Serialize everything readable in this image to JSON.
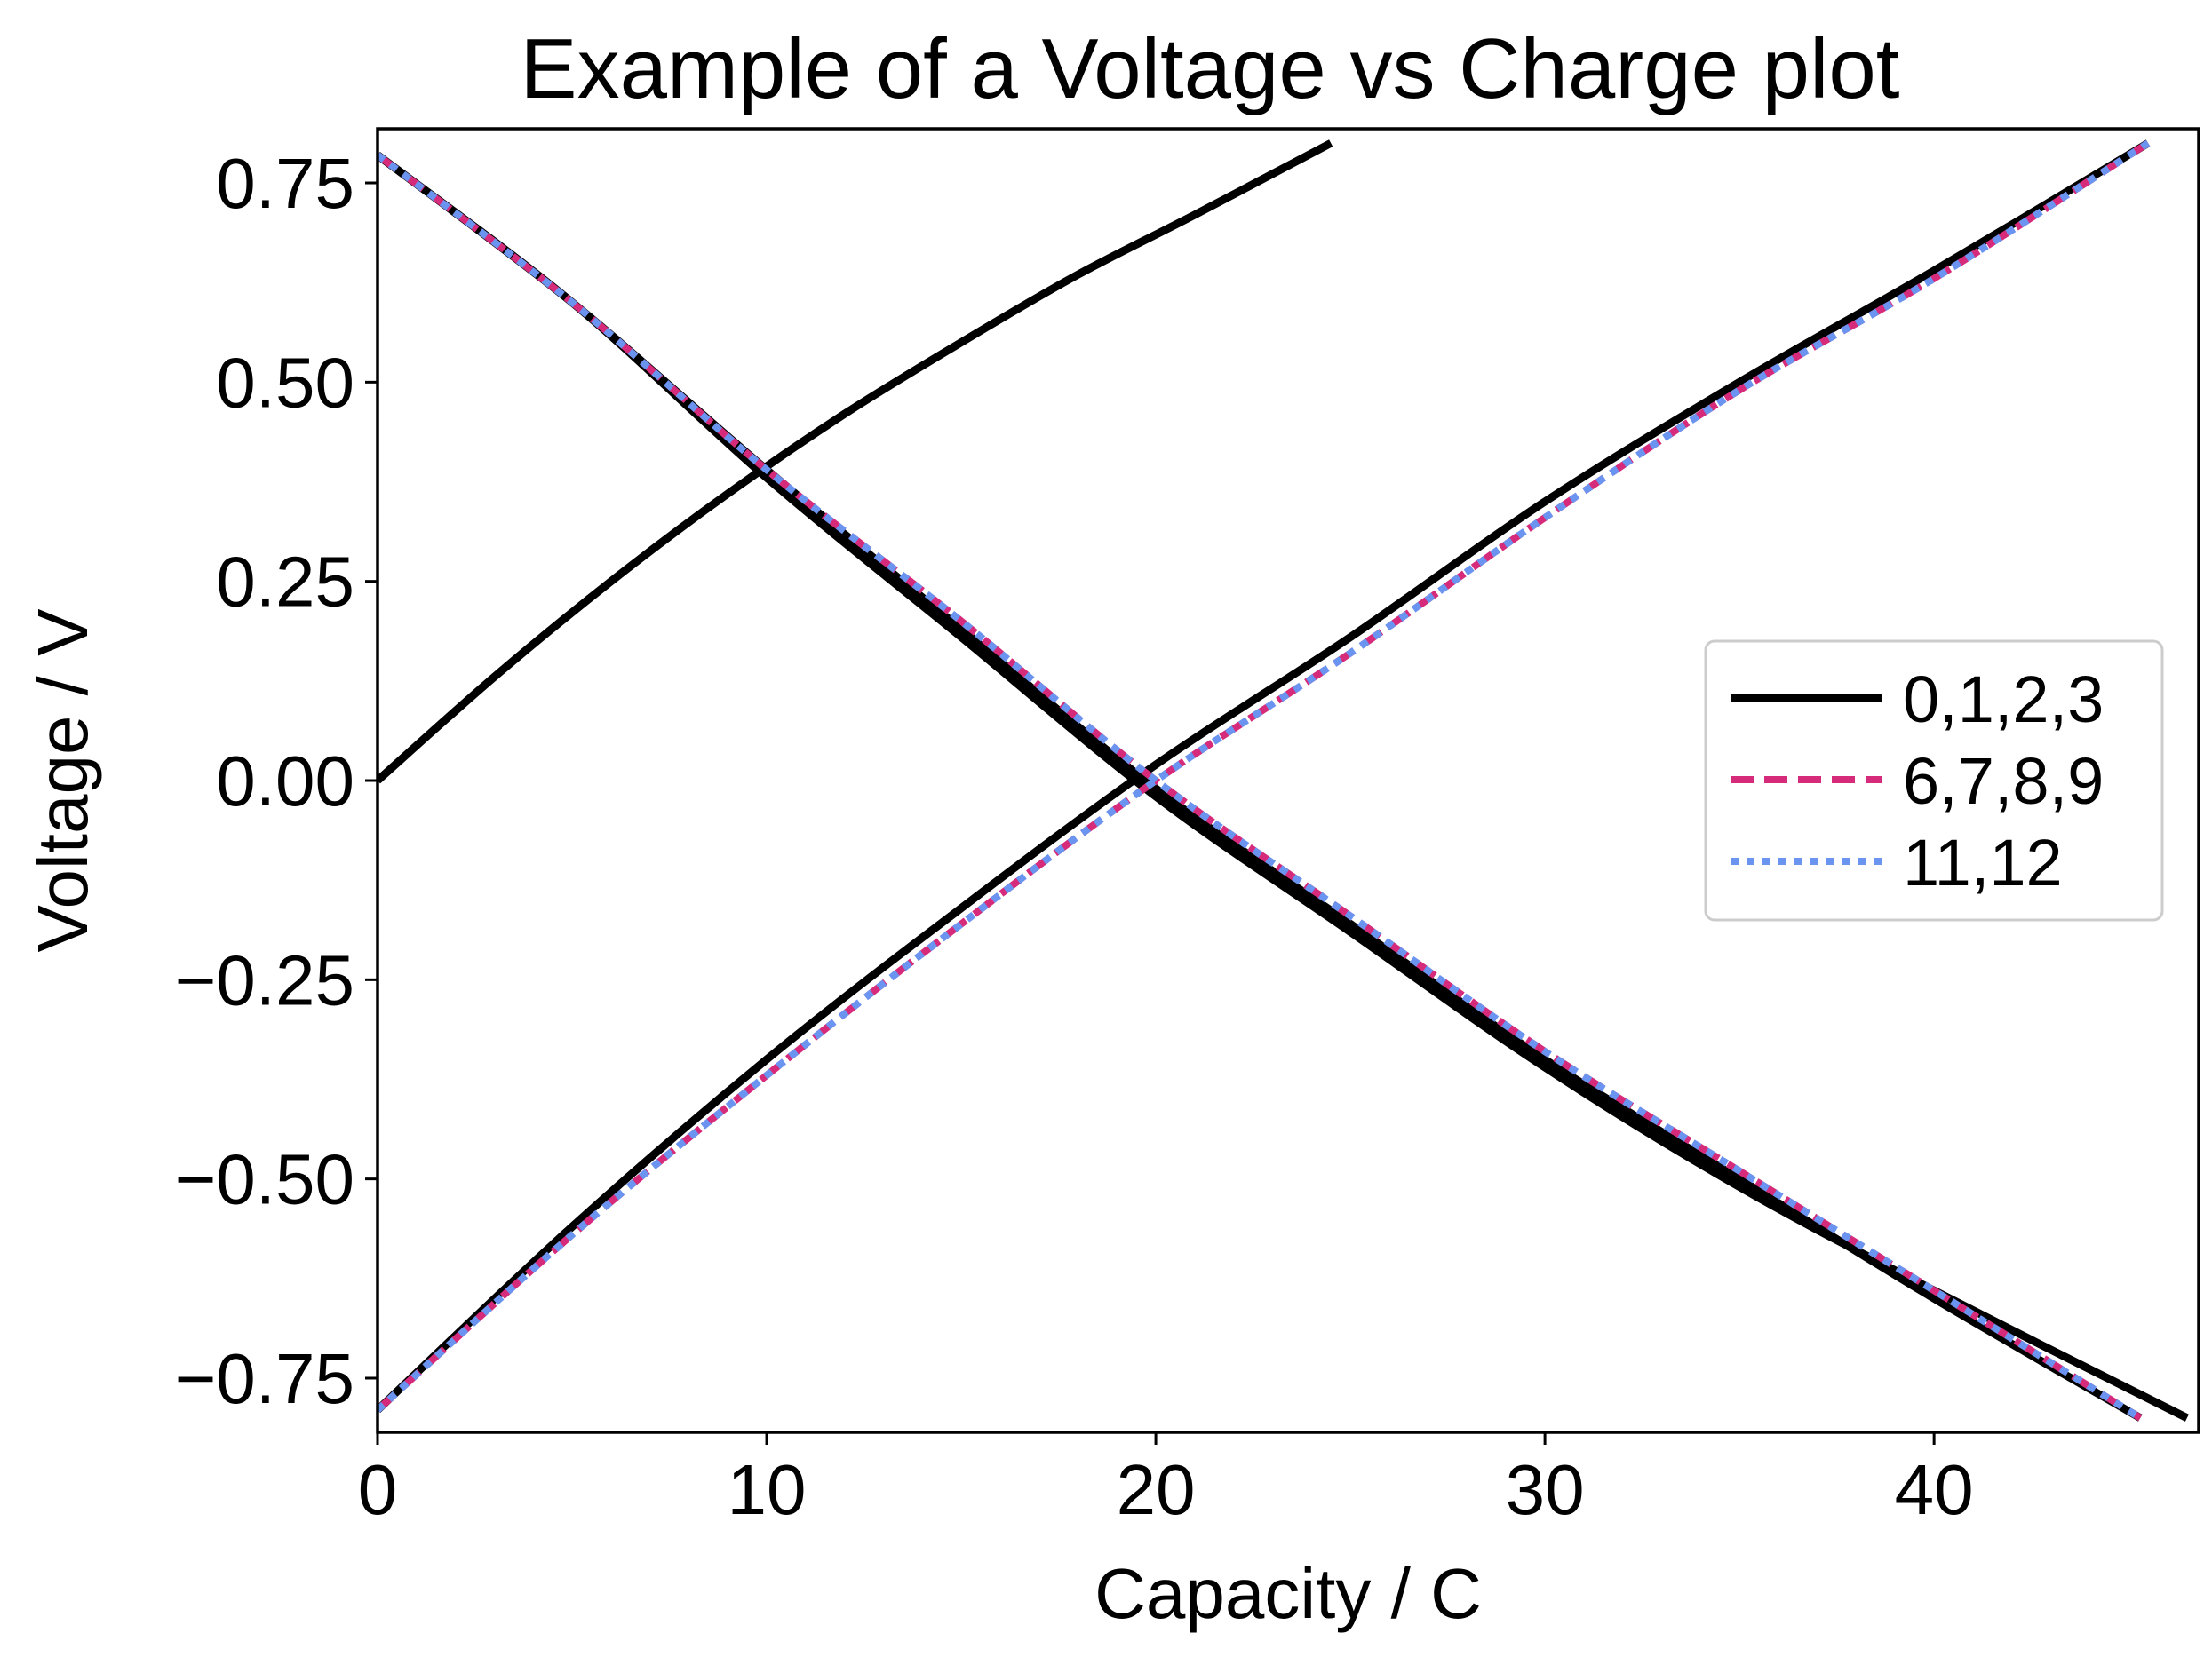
{
  "chart_data": {
    "type": "line",
    "title": "Example of a Voltage vs Charge plot",
    "xlabel": "Capacity / C",
    "ylabel": "Voltage / V",
    "xlim": [
      0,
      46.8
    ],
    "ylim": [
      -0.818,
      0.818
    ],
    "xticks": [
      0,
      10,
      20,
      30,
      40
    ],
    "xtick_labels": [
      "0",
      "10",
      "20",
      "30",
      "40"
    ],
    "yticks": [
      0.75,
      0.5,
      0.25,
      0.0,
      -0.25,
      -0.5,
      -0.75
    ],
    "ytick_labels": [
      "0.75",
      "0.50",
      "0.25",
      "0.00",
      "−0.25",
      "−0.50",
      "−0.75"
    ],
    "grid": false,
    "legend_position": "center-right",
    "legend": [
      {
        "label": "0,1,2,3",
        "color": "#000000",
        "style": "solid"
      },
      {
        "label": "6,7,8,9",
        "color": "#d62a7b",
        "style": "dashed"
      },
      {
        "label": "11,12",
        "color": "#6b93f0",
        "style": "dotted"
      }
    ],
    "series": [
      {
        "name": "0,1,2,3",
        "color": "#000000",
        "style": "solid",
        "curves": [
          {
            "x": [
              0,
              3,
              6,
              9,
              12,
              15,
              18,
              21,
              24.5
            ],
            "y": [
              0.0,
              0.13,
              0.25,
              0.36,
              0.46,
              0.55,
              0.635,
              0.71,
              0.8
            ]
          },
          {
            "x": [
              0,
              5,
              10,
              15,
              20,
              25,
              30,
              35,
              40,
              46.5
            ],
            "y": [
              0.785,
              0.6,
              0.38,
              0.18,
              -0.02,
              -0.19,
              -0.36,
              -0.51,
              -0.64,
              -0.8
            ]
          },
          {
            "x": [
              0,
              5,
              10,
              15,
              20,
              25,
              30,
              35,
              40,
              45.3
            ],
            "y": [
              0.785,
              0.6,
              0.39,
              0.19,
              -0.01,
              -0.18,
              -0.35,
              -0.5,
              -0.65,
              -0.8
            ]
          },
          {
            "x": [
              0,
              5,
              10,
              15,
              20,
              25,
              30,
              35,
              40,
              45.5
            ],
            "y": [
              -0.79,
              -0.56,
              -0.35,
              -0.16,
              0.02,
              0.18,
              0.35,
              0.5,
              0.64,
              0.8
            ]
          }
        ]
      },
      {
        "name": "6,7,8,9",
        "color": "#d62a7b",
        "style": "dashed",
        "curves": [
          {
            "x": [
              0,
              5,
              10,
              15,
              20,
              25,
              30,
              35,
              40,
              45.3
            ],
            "y": [
              0.785,
              0.6,
              0.39,
              0.2,
              0.0,
              -0.17,
              -0.34,
              -0.49,
              -0.64,
              -0.8
            ]
          },
          {
            "x": [
              0,
              5,
              10,
              15,
              20,
              25,
              30,
              35,
              40,
              45.5
            ],
            "y": [
              -0.79,
              -0.57,
              -0.37,
              -0.18,
              0.0,
              0.16,
              0.33,
              0.49,
              0.63,
              0.8
            ]
          }
        ]
      },
      {
        "name": "11,12",
        "color": "#6b93f0",
        "style": "dotted",
        "curves": [
          {
            "x": [
              0,
              5,
              10,
              15,
              20,
              25,
              30,
              35,
              40,
              45.3
            ],
            "y": [
              0.785,
              0.6,
              0.39,
              0.2,
              0.0,
              -0.17,
              -0.34,
              -0.49,
              -0.64,
              -0.8
            ]
          },
          {
            "x": [
              0,
              5,
              10,
              15,
              20,
              25,
              30,
              35,
              40,
              45.5
            ],
            "y": [
              -0.79,
              -0.57,
              -0.37,
              -0.18,
              0.0,
              0.16,
              0.33,
              0.49,
              0.63,
              0.8
            ]
          }
        ]
      }
    ]
  }
}
